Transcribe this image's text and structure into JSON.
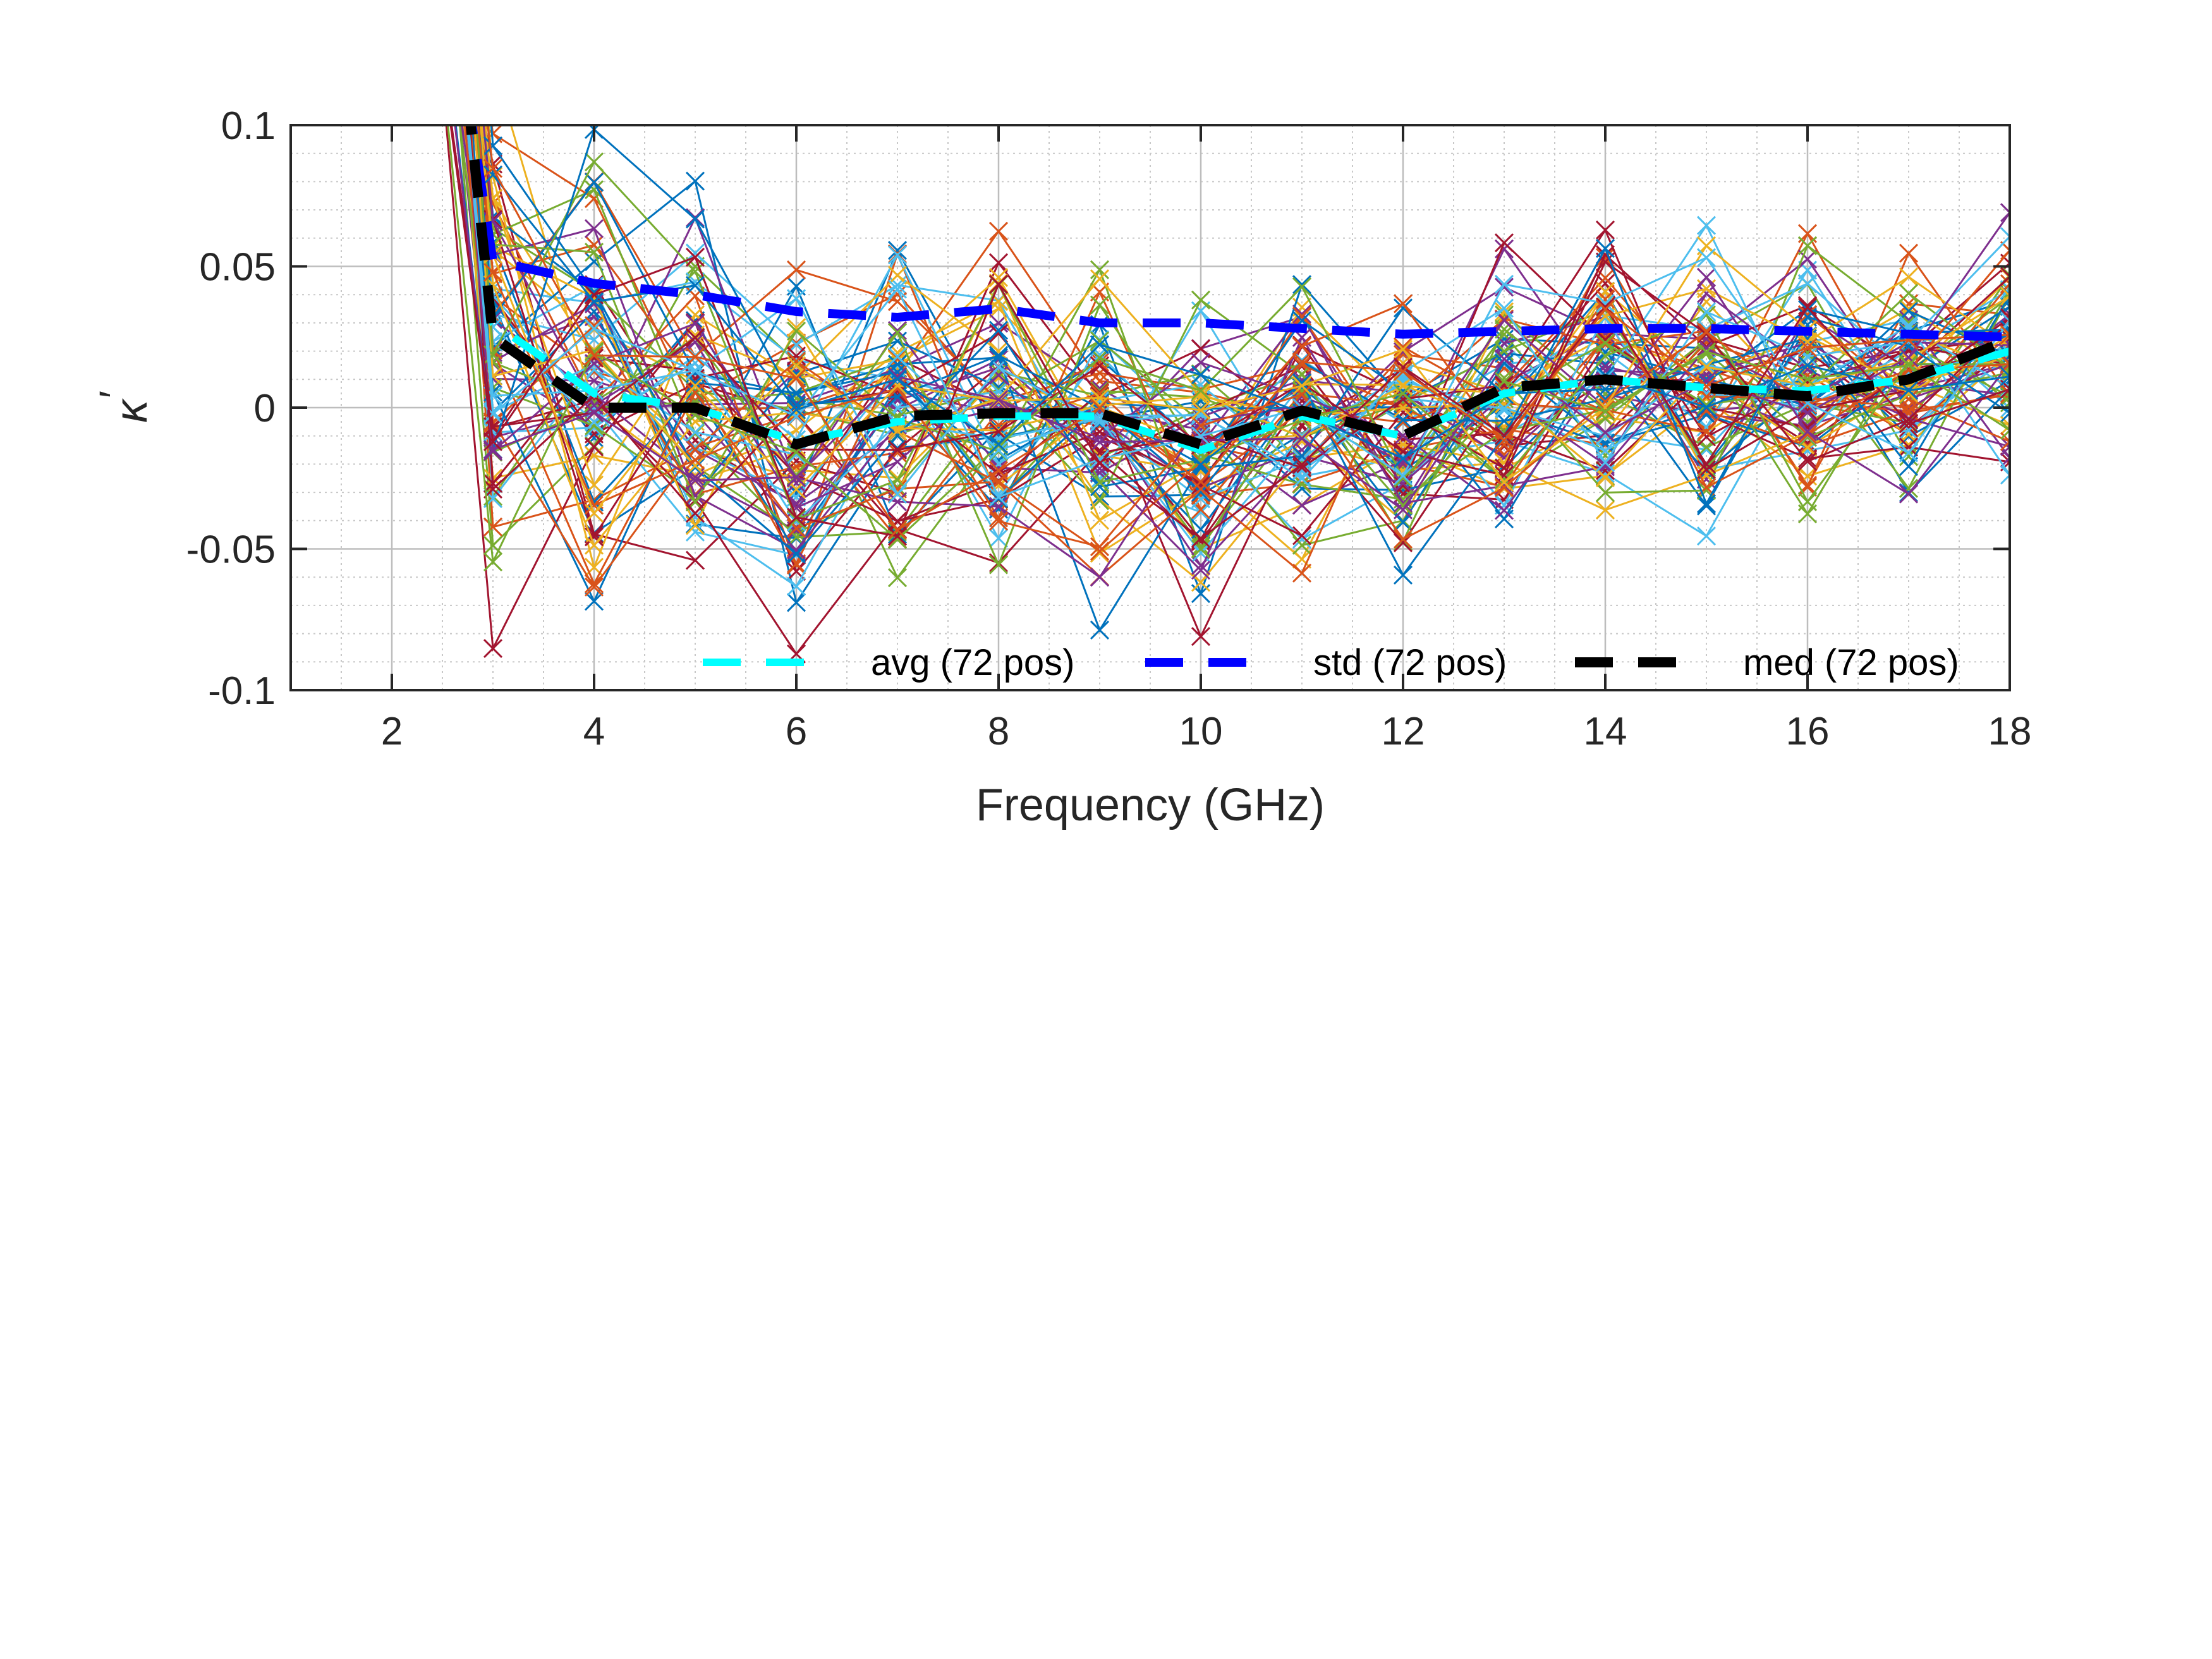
{
  "chart_data": {
    "type": "line",
    "xlabel": "Frequency (GHz)",
    "ylabel": "κ′",
    "ylabel_parts": {
      "symbol": "κ",
      "prime": "′"
    },
    "xlim": [
      1,
      18
    ],
    "ylim": [
      -0.1,
      0.1
    ],
    "xticks": [
      2,
      4,
      6,
      8,
      10,
      12,
      14,
      16,
      18
    ],
    "xtick_labels": [
      "2",
      "4",
      "6",
      "8",
      "10",
      "12",
      "14",
      "16",
      "18"
    ],
    "yticks": [
      -0.1,
      -0.05,
      0,
      0.05,
      0.1
    ],
    "ytick_labels": [
      "-0.1",
      "-0.05",
      "0",
      "0.05",
      "0.1"
    ],
    "grid": true,
    "minor_grid": true,
    "legend_position": "bottom-right",
    "x": [
      1,
      2,
      3,
      4,
      5,
      6,
      7,
      8,
      9,
      10,
      11,
      12,
      13,
      14,
      15,
      16,
      17,
      18
    ],
    "individual_traces": {
      "count": 72,
      "marker": "x",
      "colors": [
        "#0072bd",
        "#d95319",
        "#edb120",
        "#7e2f8e",
        "#77ac30",
        "#4dbeee",
        "#a2142f"
      ]
    },
    "series": [
      {
        "name": "avg (72 pos)",
        "color": "#00ffff",
        "dash": "dashed",
        "values": [
          null,
          null,
          0.03,
          0.005,
          0.0,
          -0.012,
          -0.005,
          -0.003,
          -0.003,
          -0.015,
          -0.003,
          -0.01,
          0.005,
          0.01,
          0.007,
          0.006,
          0.01,
          0.02
        ]
      },
      {
        "name": "std (72 pos)",
        "color": "#0000ff",
        "dash": "dashed",
        "values": [
          null,
          null,
          0.052,
          0.044,
          0.04,
          0.034,
          0.032,
          0.035,
          0.03,
          0.03,
          0.028,
          0.026,
          0.027,
          0.028,
          0.028,
          0.027,
          0.026,
          0.025
        ]
      },
      {
        "name": "med (72 pos)",
        "color": "#000000",
        "dash": "dashed",
        "values": [
          null,
          null,
          0.025,
          0.0,
          0.0,
          -0.013,
          -0.003,
          -0.002,
          -0.002,
          -0.013,
          -0.001,
          -0.01,
          0.007,
          0.01,
          0.007,
          0.004,
          0.01,
          0.024
        ]
      }
    ]
  }
}
